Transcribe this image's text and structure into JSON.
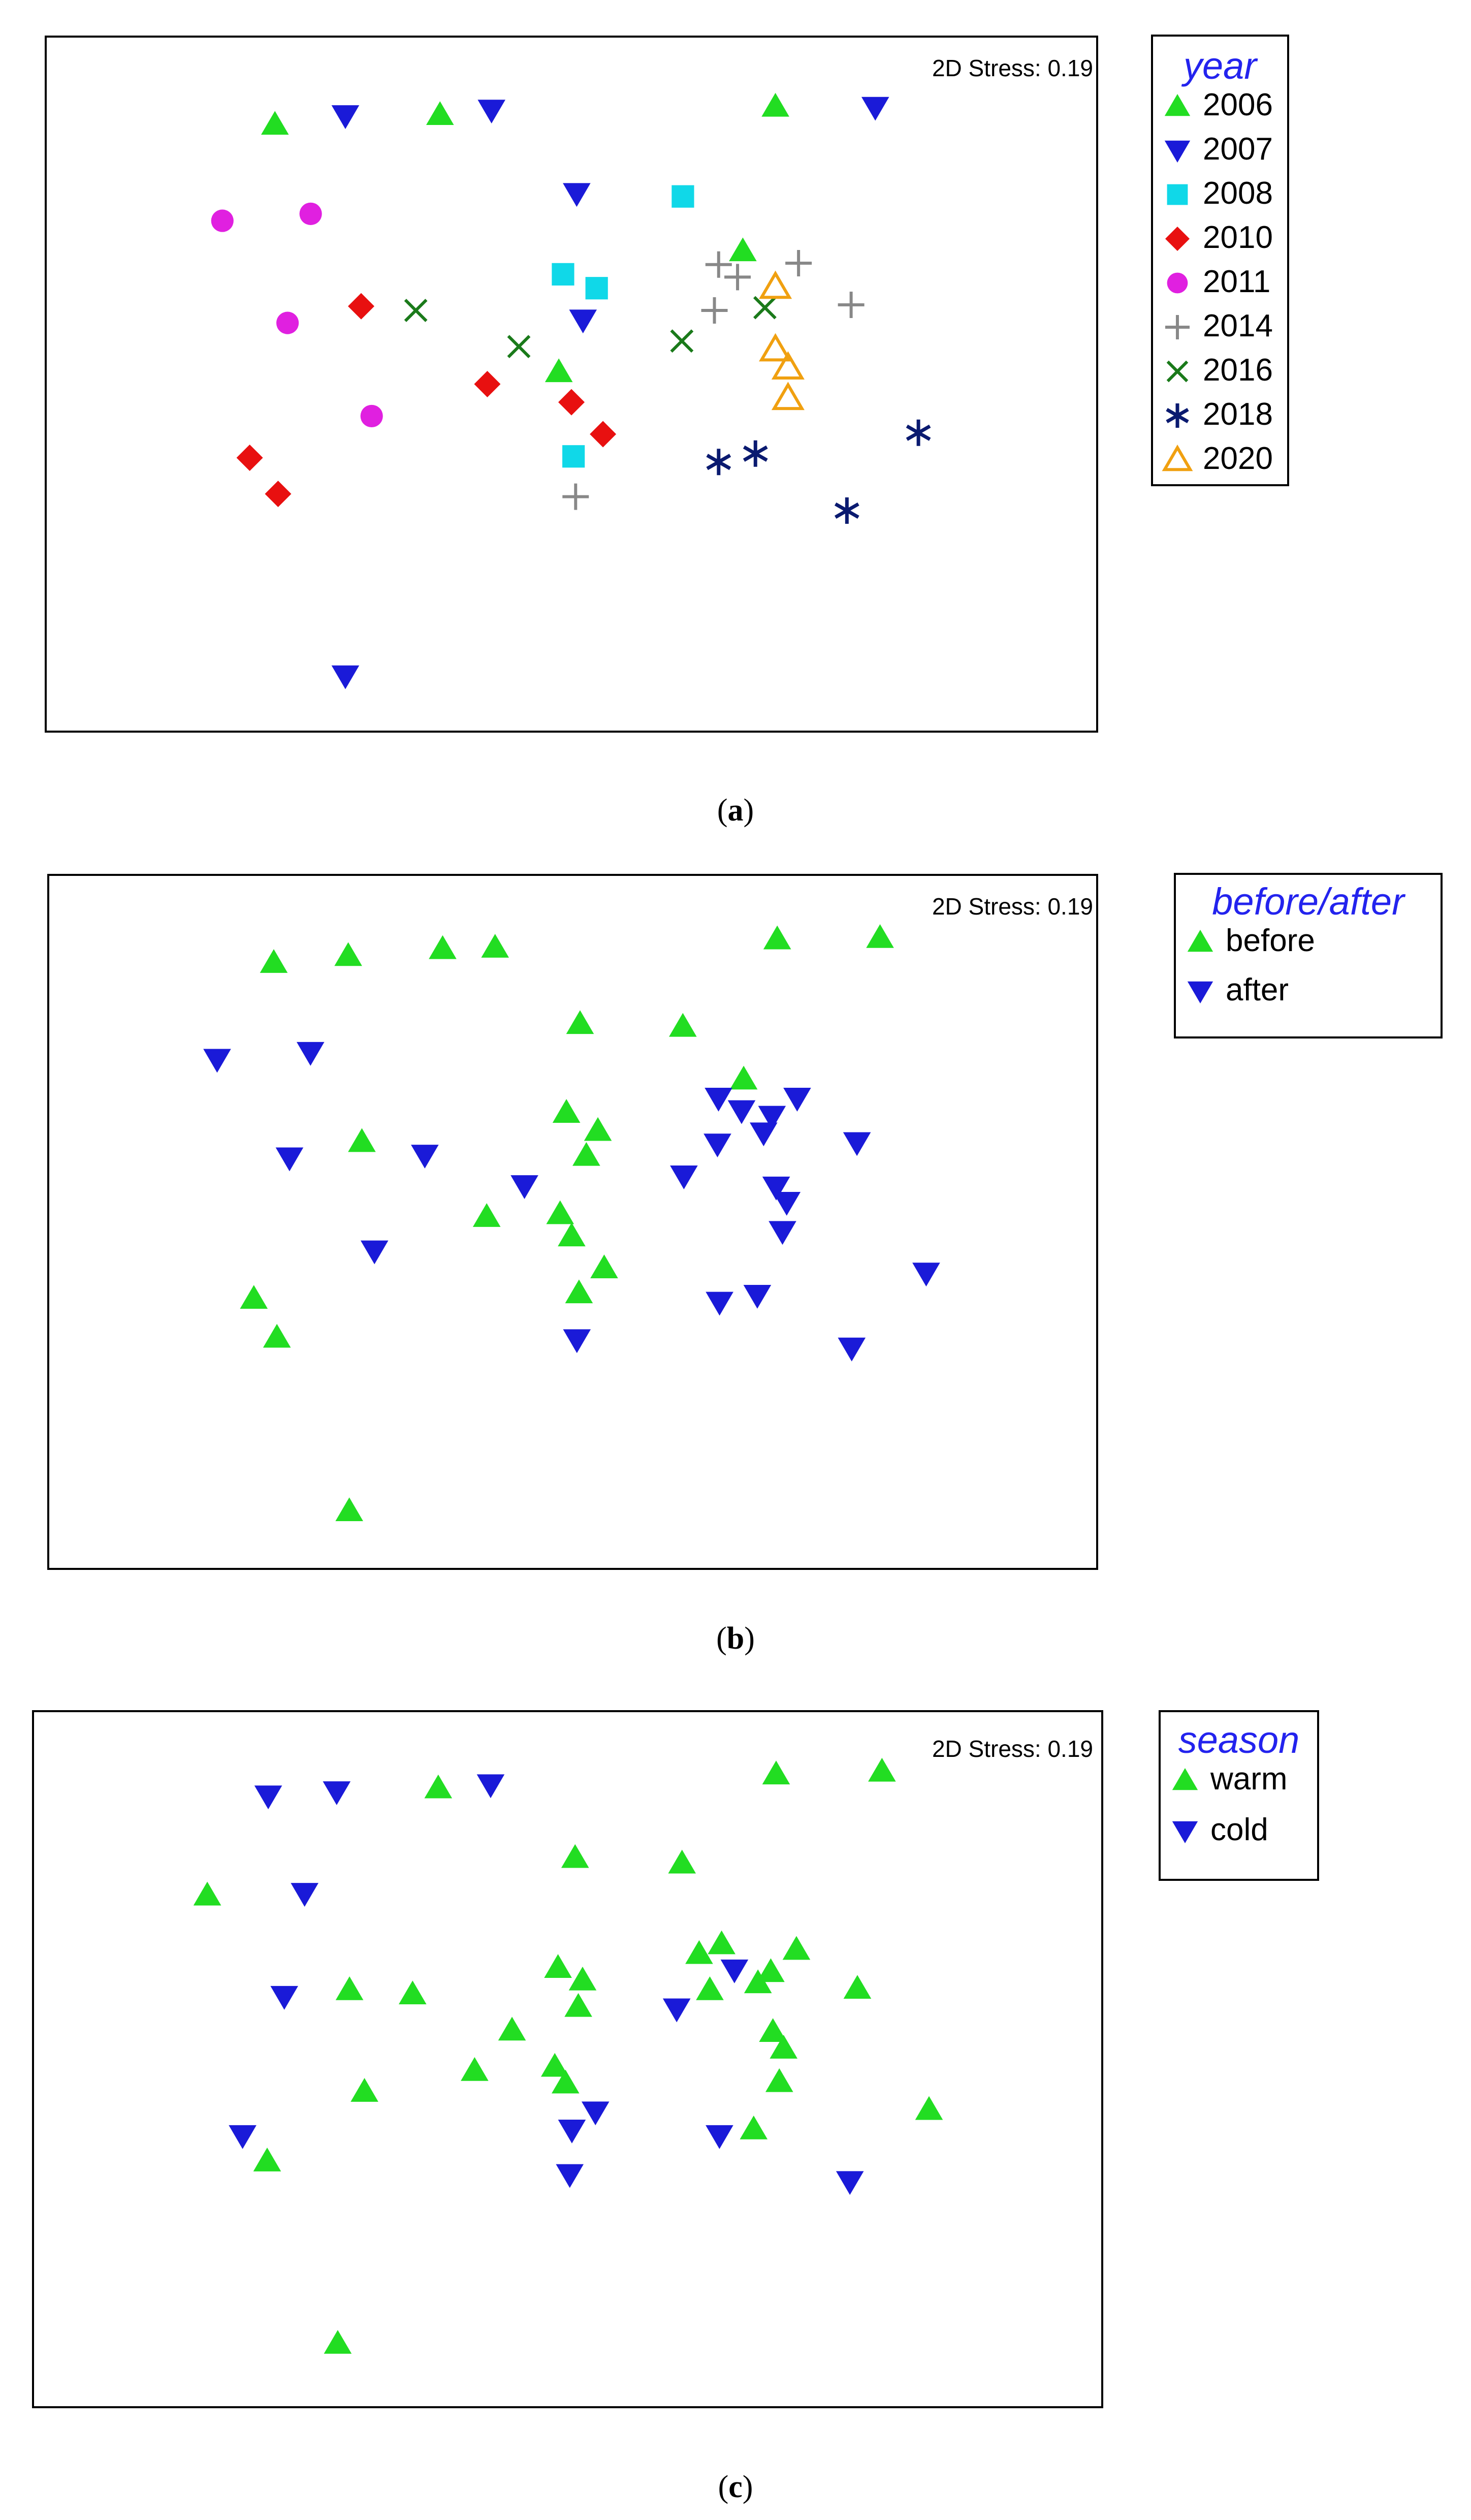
{
  "figure": {
    "panels": [
      {
        "id": "a",
        "caption_letter": "a",
        "stress_label": "2D Stress: 0.19",
        "legend_title": "year"
      },
      {
        "id": "b",
        "caption_letter": "b",
        "stress_label": "2D Stress: 0.19",
        "legend_title": "before/after"
      },
      {
        "id": "c",
        "caption_letter": "c",
        "stress_label": "2D Stress: 0.19",
        "legend_title": "season"
      }
    ]
  },
  "chart_data": [
    {
      "type": "scatter",
      "title": "",
      "annotation": "2D Stress: 0.19",
      "xlabel": "",
      "ylabel": "",
      "grid": false,
      "legend_title": "year",
      "legend_position": "right",
      "xlim": [
        0,
        100
      ],
      "ylim": [
        0,
        100
      ],
      "series": [
        {
          "name": "2006",
          "marker": "triangle-up",
          "color": "#22dd22",
          "points": [
            [
              21.8,
              87.4
            ],
            [
              37.5,
              88.8
            ],
            [
              69.4,
              90.0
            ],
            [
              66.3,
              69.2
            ],
            [
              48.8,
              51.8
            ]
          ]
        },
        {
          "name": "2007",
          "marker": "triangle-down",
          "color": "#1a1ad8",
          "points": [
            [
              28.5,
              88.6
            ],
            [
              42.4,
              89.4
            ],
            [
              78.9,
              89.8
            ],
            [
              50.5,
              77.4
            ],
            [
              51.1,
              59.2
            ],
            [
              28.5,
              8.0
            ]
          ]
        },
        {
          "name": "2008",
          "marker": "square",
          "color": "#10d8e8",
          "points": [
            [
              60.6,
              77.0
            ],
            [
              49.2,
              65.8
            ],
            [
              52.4,
              63.8
            ],
            [
              50.2,
              39.6
            ]
          ]
        },
        {
          "name": "2010",
          "marker": "diamond",
          "color": "#e81010",
          "points": [
            [
              30.0,
              61.2
            ],
            [
              42.0,
              50.0
            ],
            [
              50.0,
              47.4
            ],
            [
              53.0,
              42.8
            ],
            [
              19.4,
              39.4
            ],
            [
              22.1,
              34.2
            ]
          ]
        },
        {
          "name": "2011",
          "marker": "circle",
          "color": "#e020e0",
          "points": [
            [
              16.8,
              73.5
            ],
            [
              25.2,
              74.5
            ],
            [
              23.0,
              58.8
            ],
            [
              31.0,
              45.4
            ]
          ]
        },
        {
          "name": "2014",
          "marker": "plus",
          "color": "#888888",
          "points": [
            [
              64.0,
              67.2
            ],
            [
              65.8,
              65.4
            ],
            [
              71.6,
              67.4
            ],
            [
              63.6,
              60.6
            ],
            [
              76.6,
              61.4
            ],
            [
              50.4,
              33.8
            ]
          ]
        },
        {
          "name": "2016",
          "marker": "cross",
          "color": "#1a7a1a",
          "points": [
            [
              35.2,
              60.6
            ],
            [
              45.0,
              55.4
            ],
            [
              60.5,
              56.2
            ],
            [
              68.4,
              61.0
            ]
          ]
        },
        {
          "name": "2018",
          "marker": "asterisk",
          "color": "#0a1a70",
          "points": [
            [
              64.0,
              38.8
            ],
            [
              67.5,
              40.0
            ],
            [
              83.0,
              43.0
            ],
            [
              76.2,
              31.8
            ]
          ]
        },
        {
          "name": "2020",
          "marker": "triangle-up-open",
          "color": "#f0a010",
          "points": [
            [
              69.4,
              64.0
            ],
            [
              69.4,
              55.0
            ],
            [
              70.6,
              52.4
            ],
            [
              70.6,
              48.0
            ]
          ]
        }
      ]
    },
    {
      "type": "scatter",
      "title": "",
      "annotation": "2D Stress: 0.19",
      "xlabel": "",
      "ylabel": "",
      "grid": false,
      "legend_title": "before/after",
      "legend_position": "right",
      "xlim": [
        0,
        100
      ],
      "ylim": [
        0,
        100
      ],
      "series": [
        {
          "name": "before",
          "marker": "triangle-up",
          "color": "#22dd22",
          "points": [
            [
              21.5,
              87.4
            ],
            [
              28.6,
              88.4
            ],
            [
              37.6,
              89.4
            ],
            [
              42.6,
              89.6
            ],
            [
              69.5,
              90.8
            ],
            [
              79.3,
              91.0
            ],
            [
              50.7,
              78.6
            ],
            [
              60.5,
              78.2
            ],
            [
              66.3,
              70.6
            ],
            [
              49.4,
              65.8
            ],
            [
              52.4,
              63.2
            ],
            [
              29.9,
              61.6
            ],
            [
              51.3,
              59.6
            ],
            [
              41.8,
              50.8
            ],
            [
              48.8,
              51.2
            ],
            [
              49.9,
              48.0
            ],
            [
              53.0,
              43.4
            ],
            [
              19.6,
              39.0
            ],
            [
              50.6,
              39.8
            ],
            [
              21.8,
              33.4
            ],
            [
              28.7,
              8.4
            ]
          ]
        },
        {
          "name": "after",
          "marker": "triangle-down",
          "color": "#1a1ad8",
          "points": [
            [
              16.1,
              73.4
            ],
            [
              25.0,
              74.4
            ],
            [
              63.9,
              67.8
            ],
            [
              66.1,
              66.0
            ],
            [
              71.4,
              67.8
            ],
            [
              69.0,
              65.2
            ],
            [
              68.2,
              62.8
            ],
            [
              63.8,
              61.2
            ],
            [
              77.1,
              61.4
            ],
            [
              23.0,
              59.2
            ],
            [
              35.9,
              59.6
            ],
            [
              60.6,
              56.6
            ],
            [
              45.4,
              55.2
            ],
            [
              69.4,
              55.0
            ],
            [
              70.4,
              52.8
            ],
            [
              70.0,
              48.6
            ],
            [
              31.1,
              45.8
            ],
            [
              83.7,
              42.6
            ],
            [
              64.0,
              38.4
            ],
            [
              67.6,
              39.4
            ],
            [
              50.4,
              33.0
            ],
            [
              76.6,
              31.8
            ]
          ]
        }
      ]
    },
    {
      "type": "scatter",
      "title": "",
      "annotation": "2D Stress: 0.19",
      "xlabel": "",
      "ylabel": "",
      "grid": false,
      "legend_title": "season",
      "legend_position": "right",
      "xlim": [
        0,
        100
      ],
      "ylim": [
        0,
        100
      ],
      "series": [
        {
          "name": "warm",
          "marker": "triangle-up",
          "color": "#22dd22",
          "points": [
            [
              37.9,
              89.0
            ],
            [
              69.5,
              91.0
            ],
            [
              79.4,
              91.4
            ],
            [
              50.7,
              79.0
            ],
            [
              60.7,
              78.2
            ],
            [
              16.3,
              73.6
            ],
            [
              64.4,
              66.6
            ],
            [
              62.3,
              65.2
            ],
            [
              71.4,
              65.8
            ],
            [
              49.1,
              63.2
            ],
            [
              51.4,
              61.4
            ],
            [
              69.0,
              62.6
            ],
            [
              67.8,
              61.0
            ],
            [
              29.6,
              60.0
            ],
            [
              35.5,
              59.4
            ],
            [
              63.3,
              60.0
            ],
            [
              51.0,
              57.6
            ],
            [
              77.1,
              60.2
            ],
            [
              44.8,
              54.2
            ],
            [
              69.2,
              54.0
            ],
            [
              70.2,
              51.6
            ],
            [
              41.3,
              48.4
            ],
            [
              48.8,
              49.0
            ],
            [
              49.8,
              46.6
            ],
            [
              69.8,
              46.8
            ],
            [
              31.0,
              45.4
            ],
            [
              83.8,
              42.8
            ],
            [
              67.4,
              40.0
            ],
            [
              21.9,
              35.4
            ],
            [
              28.5,
              9.2
            ]
          ]
        },
        {
          "name": "cold",
          "marker": "triangle-down",
          "color": "#1a1ad8",
          "points": [
            [
              22.0,
              87.8
            ],
            [
              28.4,
              88.4
            ],
            [
              42.8,
              89.4
            ],
            [
              25.4,
              73.8
            ],
            [
              65.6,
              62.8
            ],
            [
              23.5,
              59.0
            ],
            [
              60.2,
              57.2
            ],
            [
              52.6,
              42.4
            ],
            [
              50.4,
              39.8
            ],
            [
              64.2,
              39.0
            ],
            [
              19.6,
              39.0
            ],
            [
              50.2,
              33.4
            ],
            [
              76.4,
              32.4
            ]
          ]
        }
      ]
    }
  ]
}
